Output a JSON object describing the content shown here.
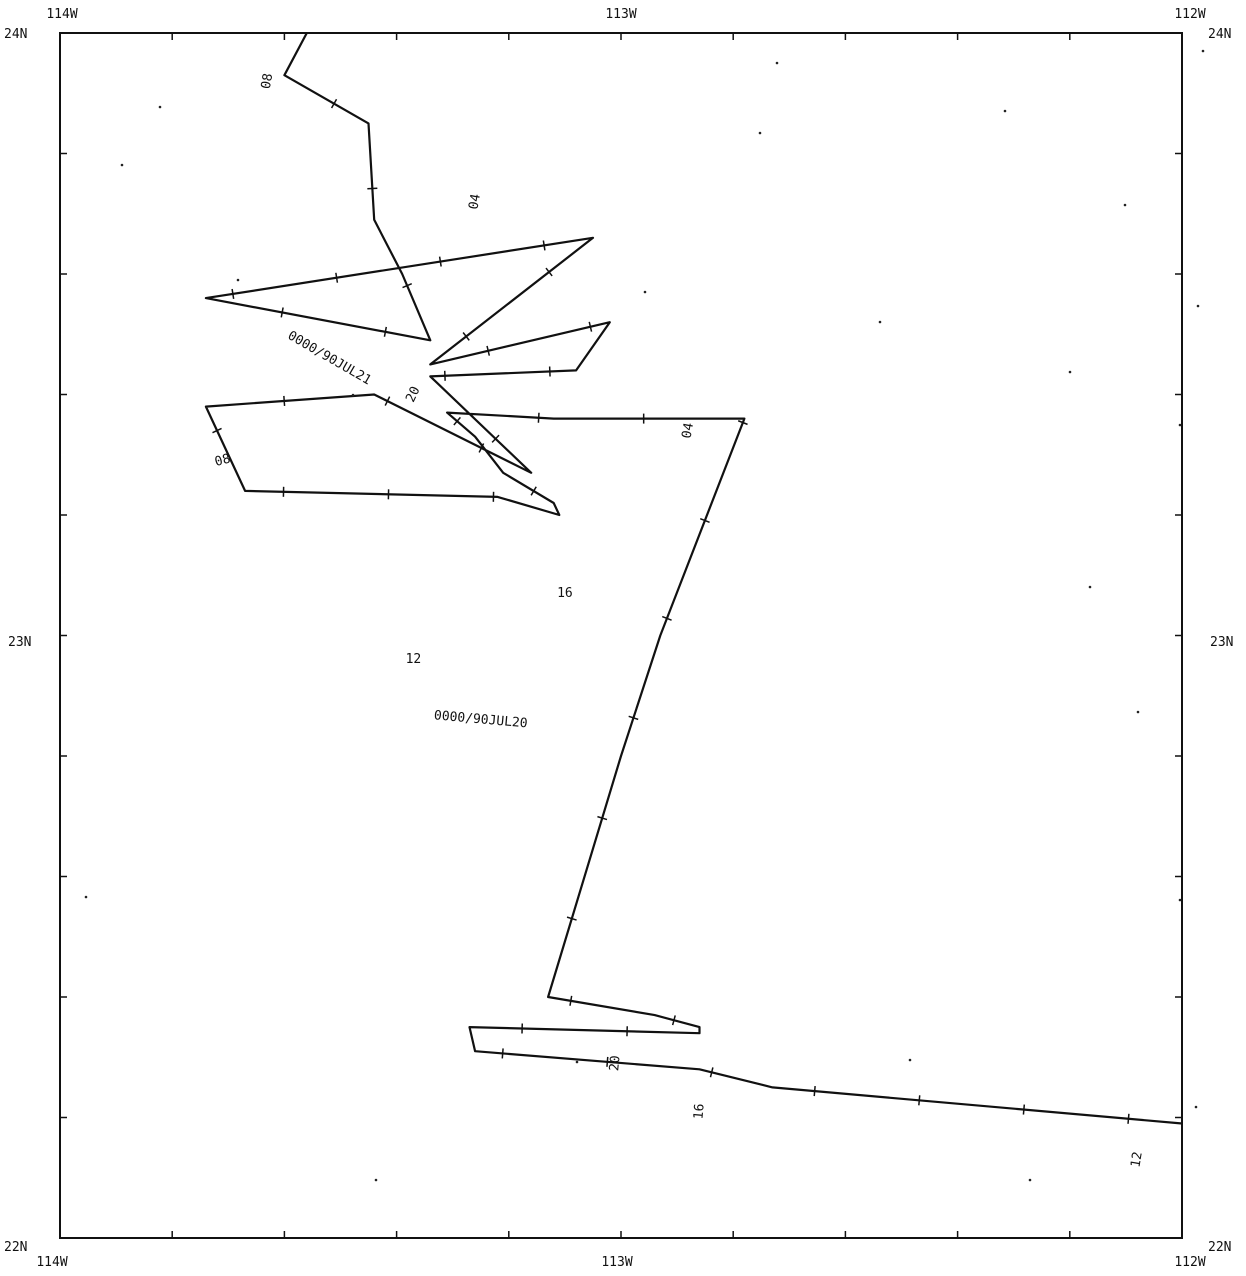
{
  "map": {
    "lon_range": [
      -114,
      -112
    ],
    "lat_range": [
      22,
      24
    ],
    "corner_labels": {
      "top_left_lon": "114W",
      "top_mid_lon": "113W",
      "top_right_lon": "112W",
      "bottom_left_lon": "114W",
      "bottom_mid_lon": "113W",
      "bottom_right_lon": "112W",
      "left_top_lat": "24N",
      "left_mid_lat": "23N",
      "left_bottom_lat": "22N",
      "right_top_lat": "24N",
      "right_mid_lat": "23N",
      "right_bottom_lat": "22N"
    },
    "track": [
      [
        -113.56,
        24.0
      ],
      [
        -113.6,
        23.93
      ],
      [
        -113.45,
        23.85
      ],
      [
        -113.44,
        23.69
      ],
      [
        -113.39,
        23.6
      ],
      [
        -113.34,
        23.49
      ],
      [
        -113.74,
        23.56
      ],
      [
        -113.05,
        23.66
      ],
      [
        -113.34,
        23.45
      ],
      [
        -113.02,
        23.52
      ],
      [
        -113.08,
        23.44
      ],
      [
        -113.34,
        23.43
      ],
      [
        -113.16,
        23.27
      ],
      [
        -113.44,
        23.4
      ],
      [
        -113.74,
        23.38
      ],
      [
        -113.67,
        23.24
      ],
      [
        -113.22,
        23.23
      ],
      [
        -113.11,
        23.2
      ],
      [
        -113.12,
        23.22
      ],
      [
        -113.21,
        23.27
      ],
      [
        -113.26,
        23.33
      ],
      [
        -113.31,
        23.37
      ],
      [
        -113.12,
        23.36
      ],
      [
        -112.78,
        23.36
      ],
      [
        -112.93,
        23.0
      ],
      [
        -113.0,
        22.8
      ],
      [
        -113.13,
        22.4
      ],
      [
        -112.94,
        22.37
      ],
      [
        -112.86,
        22.35
      ],
      [
        -112.86,
        22.34
      ],
      [
        -113.27,
        22.35
      ],
      [
        -113.26,
        22.31
      ],
      [
        -112.86,
        22.28
      ],
      [
        -112.73,
        22.25
      ],
      [
        -112.0,
        22.19
      ]
    ],
    "time_labels": [
      {
        "text": "08",
        "lon": -113.63,
        "lat": 23.92,
        "rotate": -80
      },
      {
        "text": "04",
        "lon": -113.26,
        "lat": 23.72,
        "rotate": -80
      },
      {
        "text": "0000/90JUL21",
        "lon": -113.52,
        "lat": 23.46,
        "rotate": 30
      },
      {
        "text": "20",
        "lon": -113.37,
        "lat": 23.4,
        "rotate": -65
      },
      {
        "text": "08",
        "lon": -113.71,
        "lat": 23.29,
        "rotate": -15
      },
      {
        "text": "04",
        "lon": -112.88,
        "lat": 23.34,
        "rotate": -80
      },
      {
        "text": "16",
        "lon": -113.1,
        "lat": 23.07,
        "rotate": 0
      },
      {
        "text": "12",
        "lon": -113.37,
        "lat": 22.96,
        "rotate": 0
      },
      {
        "text": "0000/90JUL20",
        "lon": -113.25,
        "lat": 22.86,
        "rotate": 5
      },
      {
        "text": "20",
        "lon": -113.01,
        "lat": 22.29,
        "rotate": -85
      },
      {
        "text": "16",
        "lon": -112.86,
        "lat": 22.21,
        "rotate": -85
      },
      {
        "text": "12",
        "lon": -112.08,
        "lat": 22.13,
        "rotate": -80
      }
    ]
  }
}
